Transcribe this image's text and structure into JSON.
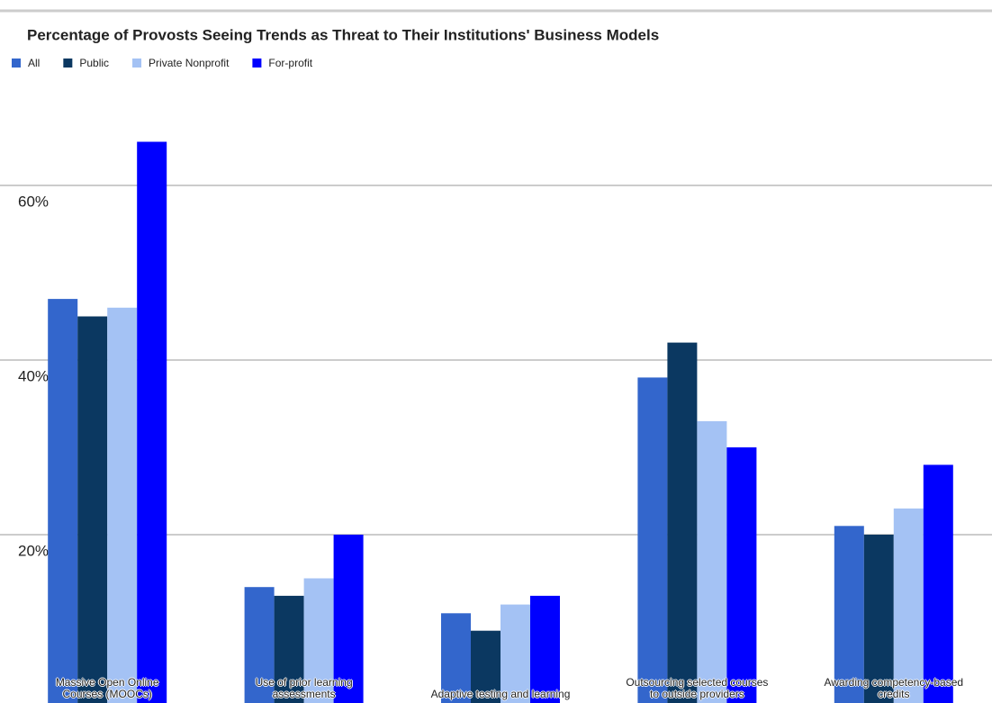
{
  "chart_data": {
    "type": "bar",
    "title": "Percentage of Provosts Seeing Trends as Threat to Their Institutions' Business Models",
    "categories": [
      "Massive Open Online Courses (MOOCs)",
      "Use of prior learning assessments",
      "Adaptive testing and learning",
      "Outsourcing selected courses to outside providers",
      "Awarding competency-based credits"
    ],
    "series": [
      {
        "name": "All",
        "color": "#3366cc",
        "values": [
          47,
          14,
          11,
          38,
          21
        ]
      },
      {
        "name": "Public",
        "color": "#0b3861",
        "values": [
          45,
          13,
          9,
          42,
          20
        ]
      },
      {
        "name": "Private Nonprofit",
        "color": "#a4c2f4",
        "values": [
          46,
          15,
          12,
          33,
          23
        ]
      },
      {
        "name": "For-profit",
        "color": "#0000ff",
        "values": [
          65,
          20,
          13,
          30,
          28
        ]
      }
    ],
    "ylim": [
      0,
      70
    ],
    "yticks": [
      {
        "value": 20,
        "label": "20%"
      },
      {
        "value": 40,
        "label": "40%"
      },
      {
        "value": 60,
        "label": "60%"
      }
    ],
    "grid": true,
    "legend": "top"
  }
}
